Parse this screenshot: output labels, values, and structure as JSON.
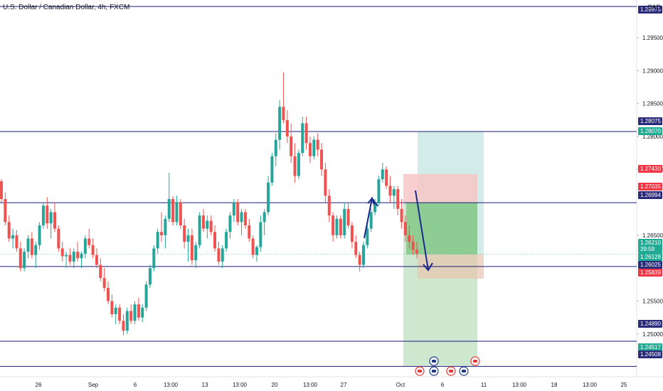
{
  "header": {
    "title": "U.S. Dollar / Canadian Dollar, 4h, FXCM",
    "currency": "CAD"
  },
  "colors": {
    "up": "#26a69a",
    "down": "#ef5350",
    "hline": "#1a1a7a",
    "arrow": "#1a2a8a",
    "target_zone": "#b2dfdb",
    "stop_zone": "#f8c6c6",
    "profit_zone": "#66bb6a",
    "profit_zone_light": "#c8e6c9",
    "price_tag": "#2a2a7a",
    "sell_tag": "#f23645",
    "green_tag": "#22ab94"
  },
  "chart_data": {
    "type": "candlestick",
    "title": "U.S. Dollar / Canadian Dollar, 4h, FXCM",
    "ylim": [
      1.2435,
      1.3003
    ],
    "y_ticks": [
      "1.29500",
      "1.29000",
      "1.28500",
      "1.28000",
      "1.27500",
      "1.26500",
      "1.25500",
      "1.25000"
    ],
    "x_ticks": [
      "26",
      "Sep",
      "6",
      "13:00",
      "13",
      "13:00",
      "20",
      "13:00",
      "27",
      "Oct",
      "6",
      "11",
      "13:00",
      "18",
      "13:00",
      "25"
    ],
    "horizontal_levels": [
      1.29975,
      1.28075,
      1.26994,
      1.26025,
      1.2489,
      1.24508
    ],
    "candles_ohlc": [
      [
        1.2732,
        1.2735,
        1.27,
        1.2705
      ],
      [
        1.2705,
        1.2715,
        1.2665,
        1.267
      ],
      [
        1.267,
        1.268,
        1.264,
        1.2645
      ],
      [
        1.2645,
        1.266,
        1.263,
        1.265
      ],
      [
        1.265,
        1.2658,
        1.2625,
        1.263
      ],
      [
        1.263,
        1.264,
        1.2595,
        1.26
      ],
      [
        1.26,
        1.263,
        1.2595,
        1.2625
      ],
      [
        1.2625,
        1.265,
        1.2615,
        1.2645
      ],
      [
        1.2645,
        1.2655,
        1.2615,
        1.262
      ],
      [
        1.262,
        1.264,
        1.26,
        1.2635
      ],
      [
        1.2635,
        1.267,
        1.2628,
        1.2665
      ],
      [
        1.2665,
        1.27,
        1.266,
        1.2695
      ],
      [
        1.2695,
        1.2708,
        1.266,
        1.2668
      ],
      [
        1.2668,
        1.269,
        1.2645,
        1.2685
      ],
      [
        1.2685,
        1.27,
        1.2655,
        1.266
      ],
      [
        1.266,
        1.2665,
        1.2625,
        1.263
      ],
      [
        1.263,
        1.264,
        1.261,
        1.2618
      ],
      [
        1.2618,
        1.2625,
        1.26,
        1.262
      ],
      [
        1.262,
        1.263,
        1.2605,
        1.261
      ],
      [
        1.261,
        1.263,
        1.26,
        1.2625
      ],
      [
        1.2625,
        1.264,
        1.261,
        1.2615
      ],
      [
        1.2615,
        1.2625,
        1.26,
        1.2622
      ],
      [
        1.2622,
        1.265,
        1.2615,
        1.2645
      ],
      [
        1.2645,
        1.266,
        1.263,
        1.2635
      ],
      [
        1.2635,
        1.2645,
        1.2615,
        1.262
      ],
      [
        1.262,
        1.263,
        1.26,
        1.2605
      ],
      [
        1.2605,
        1.2615,
        1.258,
        1.2585
      ],
      [
        1.2585,
        1.26,
        1.2565,
        1.257
      ],
      [
        1.257,
        1.258,
        1.2545,
        1.255
      ],
      [
        1.255,
        1.256,
        1.2525,
        1.253
      ],
      [
        1.253,
        1.2545,
        1.2515,
        1.254
      ],
      [
        1.254,
        1.2545,
        1.2515,
        1.252
      ],
      [
        1.252,
        1.253,
        1.2498,
        1.2505
      ],
      [
        1.2505,
        1.254,
        1.25,
        1.2535
      ],
      [
        1.2535,
        1.2545,
        1.2515,
        1.252
      ],
      [
        1.252,
        1.255,
        1.2515,
        1.2545
      ],
      [
        1.2545,
        1.2555,
        1.252,
        1.2525
      ],
      [
        1.2525,
        1.2545,
        1.2518,
        1.254
      ],
      [
        1.254,
        1.258,
        1.2535,
        1.2575
      ],
      [
        1.2575,
        1.2605,
        1.257,
        1.26
      ],
      [
        1.26,
        1.2635,
        1.2595,
        1.263
      ],
      [
        1.263,
        1.266,
        1.2622,
        1.2655
      ],
      [
        1.2655,
        1.2685,
        1.264,
        1.265
      ],
      [
        1.265,
        1.268,
        1.263,
        1.2675
      ],
      [
        1.2675,
        1.2745,
        1.267,
        1.2705
      ],
      [
        1.2705,
        1.271,
        1.2665,
        1.267
      ],
      [
        1.267,
        1.271,
        1.2665,
        1.27
      ],
      [
        1.27,
        1.2705,
        1.266,
        1.2665
      ],
      [
        1.2665,
        1.2675,
        1.263,
        1.264
      ],
      [
        1.264,
        1.266,
        1.261,
        1.265
      ],
      [
        1.265,
        1.266,
        1.2605,
        1.2612
      ],
      [
        1.2612,
        1.264,
        1.26,
        1.2635
      ],
      [
        1.2635,
        1.2685,
        1.263,
        1.268
      ],
      [
        1.268,
        1.269,
        1.2655,
        1.266
      ],
      [
        1.266,
        1.268,
        1.2645,
        1.2672
      ],
      [
        1.2672,
        1.268,
        1.265,
        1.2655
      ],
      [
        1.2655,
        1.2665,
        1.2625,
        1.263
      ],
      [
        1.263,
        1.264,
        1.2605,
        1.261
      ],
      [
        1.261,
        1.2635,
        1.26,
        1.263
      ],
      [
        1.263,
        1.266,
        1.2625,
        1.2655
      ],
      [
        1.2655,
        1.2685,
        1.2645,
        1.268
      ],
      [
        1.268,
        1.2705,
        1.267,
        1.27
      ],
      [
        1.27,
        1.2705,
        1.2665,
        1.267
      ],
      [
        1.267,
        1.269,
        1.265,
        1.2685
      ],
      [
        1.2685,
        1.269,
        1.266,
        1.2665
      ],
      [
        1.2665,
        1.2675,
        1.264,
        1.2645
      ],
      [
        1.2645,
        1.265,
        1.2615,
        1.262
      ],
      [
        1.262,
        1.2635,
        1.261,
        1.2632
      ],
      [
        1.2632,
        1.268,
        1.2625,
        1.267
      ],
      [
        1.267,
        1.269,
        1.265,
        1.2685
      ],
      [
        1.2685,
        1.274,
        1.268,
        1.273
      ],
      [
        1.273,
        1.2775,
        1.2725,
        1.277
      ],
      [
        1.277,
        1.2805,
        1.2755,
        1.2795
      ],
      [
        1.2795,
        1.2855,
        1.278,
        1.2845
      ],
      [
        1.2845,
        1.2897,
        1.282,
        1.2825
      ],
      [
        1.2825,
        1.284,
        1.279,
        1.28
      ],
      [
        1.28,
        1.282,
        1.276,
        1.277
      ],
      [
        1.277,
        1.279,
        1.273,
        1.274
      ],
      [
        1.274,
        1.278,
        1.2735,
        1.2775
      ],
      [
        1.2775,
        1.283,
        1.277,
        1.282
      ],
      [
        1.282,
        1.283,
        1.278,
        1.279
      ],
      [
        1.279,
        1.28,
        1.276,
        1.277
      ],
      [
        1.277,
        1.28,
        1.2765,
        1.2795
      ],
      [
        1.2795,
        1.2805,
        1.277,
        1.278
      ],
      [
        1.278,
        1.279,
        1.274,
        1.275
      ],
      [
        1.275,
        1.276,
        1.27,
        1.271
      ],
      [
        1.271,
        1.272,
        1.267,
        1.268
      ],
      [
        1.268,
        1.2685,
        1.264,
        1.265
      ],
      [
        1.265,
        1.268,
        1.2645,
        1.2675
      ],
      [
        1.2675,
        1.268,
        1.2645,
        1.265
      ],
      [
        1.265,
        1.27,
        1.2645,
        1.269
      ],
      [
        1.269,
        1.27,
        1.266,
        1.2665
      ],
      [
        1.2665,
        1.267,
        1.263,
        1.264
      ],
      [
        1.264,
        1.265,
        1.2615,
        1.262
      ],
      [
        1.262,
        1.2625,
        1.2595,
        1.2605
      ],
      [
        1.2605,
        1.264,
        1.26,
        1.2635
      ],
      [
        1.2635,
        1.2665,
        1.263,
        1.266
      ],
      [
        1.266,
        1.269,
        1.2655,
        1.2685
      ],
      [
        1.2685,
        1.2705,
        1.268,
        1.27
      ],
      [
        1.27,
        1.274,
        1.2695,
        1.2735
      ],
      [
        1.2735,
        1.276,
        1.273,
        1.275
      ],
      [
        1.275,
        1.2755,
        1.272,
        1.2725
      ],
      [
        1.2725,
        1.274,
        1.27,
        1.271
      ],
      [
        1.271,
        1.2725,
        1.269,
        1.272
      ],
      [
        1.272,
        1.2725,
        1.268,
        1.269
      ],
      [
        1.269,
        1.2705,
        1.266,
        1.267
      ],
      [
        1.267,
        1.268,
        1.264,
        1.265
      ],
      [
        1.265,
        1.2665,
        1.263,
        1.264
      ],
      [
        1.264,
        1.265,
        1.262,
        1.2628
      ],
      [
        1.2628,
        1.264,
        1.2615,
        1.2622
      ]
    ],
    "position_tool": {
      "type": "short",
      "entry": 1.26994,
      "stop": 1.2743,
      "target": 1.24517
    },
    "annotations": [
      "up-arrow",
      "down-arrow"
    ]
  },
  "right_axis_tags": [
    {
      "label": "1.29975",
      "style": "hline"
    },
    {
      "label": "1.28075",
      "style": "hline"
    },
    {
      "label": "1.28070",
      "style": "green"
    },
    {
      "label": "1.27430",
      "style": "red"
    },
    {
      "label": "1.27035",
      "style": "red"
    },
    {
      "label": "1.26994",
      "style": "hline"
    },
    {
      "label": "1.26210",
      "style": "green"
    },
    {
      "label": "39:59",
      "style": "green"
    },
    {
      "label": "1.26128",
      "style": "green"
    },
    {
      "label": "1.26025",
      "style": "hline"
    },
    {
      "label": "1.25839",
      "style": "red"
    },
    {
      "label": "1.24890",
      "style": "hline"
    },
    {
      "label": "1.24517",
      "style": "green"
    },
    {
      "label": "1.24508",
      "style": "hline"
    }
  ],
  "event_icons": [
    "ca-flag-icon",
    "us-flag-icon",
    "ca-flag-icon",
    "us-flag-icon",
    "ca-flag-icon",
    "us-flag-icon"
  ]
}
